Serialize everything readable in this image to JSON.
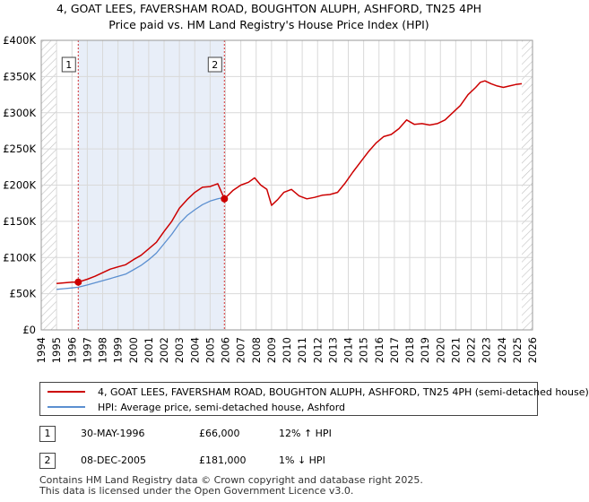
{
  "title": "4, GOAT LEES, FAVERSHAM ROAD, BOUGHTON ALUPH, ASHFORD, TN25 4PH",
  "subtitle": "Price paid vs. HM Land Registry's House Price Index (HPI)",
  "colors": {
    "price_line": "#cc0000",
    "hpi_line": "#5b8fd0",
    "shade": "#e8eef8",
    "grid": "#d9d9d9",
    "hatch": "#c0c0c0"
  },
  "chart_data": {
    "type": "line",
    "title": "Price paid vs. HM Land Registry's House Price Index (HPI)",
    "xlabel": "",
    "ylabel": "",
    "xlim": [
      1994,
      2026
    ],
    "ylim": [
      0,
      400000
    ],
    "x_ticks": [
      "1994",
      "1995",
      "1996",
      "1997",
      "1998",
      "1999",
      "2000",
      "2001",
      "2002",
      "2003",
      "2004",
      "2005",
      "2006",
      "2007",
      "2008",
      "2009",
      "2010",
      "2011",
      "2012",
      "2013",
      "2014",
      "2015",
      "2016",
      "2017",
      "2018",
      "2019",
      "2020",
      "2021",
      "2022",
      "2023",
      "2024",
      "2025",
      "2026"
    ],
    "y_ticks": [
      {
        "value": 0,
        "label": "£0"
      },
      {
        "value": 50000,
        "label": "£50K"
      },
      {
        "value": 100000,
        "label": "£100K"
      },
      {
        "value": 150000,
        "label": "£150K"
      },
      {
        "value": 200000,
        "label": "£200K"
      },
      {
        "value": 250000,
        "label": "£250K"
      },
      {
        "value": 300000,
        "label": "£300K"
      },
      {
        "value": 350000,
        "label": "£350K"
      },
      {
        "value": 400000,
        "label": "£400K"
      }
    ],
    "data_start_year": 1995.0,
    "data_end_year": 2025.3,
    "shaded_period": [
      1996.41,
      2005.93
    ],
    "series": [
      {
        "name": "4, GOAT LEES, FAVERSHAM ROAD, BOUGHTON ALUPH, ASHFORD, TN25 4PH (semi-detached house)",
        "x": [
          1995.0,
          1995.5,
          1996.0,
          1996.41,
          1997.0,
          1997.5,
          1998.0,
          1998.5,
          1999.0,
          1999.5,
          2000.0,
          2000.5,
          2001.0,
          2001.5,
          2002.0,
          2002.5,
          2003.0,
          2003.5,
          2004.0,
          2004.5,
          2005.0,
          2005.5,
          2005.93,
          2006.5,
          2007.0,
          2007.5,
          2007.9,
          2008.3,
          2008.7,
          2009.0,
          2009.4,
          2009.8,
          2010.3,
          2010.8,
          2011.3,
          2011.8,
          2012.3,
          2012.8,
          2013.3,
          2013.8,
          2014.3,
          2014.8,
          2015.3,
          2015.8,
          2016.3,
          2016.8,
          2017.3,
          2017.8,
          2018.3,
          2018.8,
          2019.3,
          2019.8,
          2020.3,
          2020.8,
          2021.3,
          2021.8,
          2022.3,
          2022.6,
          2022.9,
          2023.3,
          2023.7,
          2024.1,
          2024.5,
          2024.9,
          2025.3
        ],
        "values": [
          64000,
          65000,
          66000,
          66000,
          70000,
          74000,
          79000,
          84000,
          87000,
          90000,
          97000,
          103000,
          112000,
          121000,
          136000,
          150000,
          168000,
          180000,
          190000,
          197000,
          198000,
          202000,
          181000,
          193000,
          200000,
          204000,
          210000,
          200000,
          194000,
          172000,
          180000,
          190000,
          194000,
          185000,
          181000,
          183000,
          186000,
          187000,
          190000,
          203000,
          218000,
          232000,
          246000,
          258000,
          267000,
          270000,
          278000,
          290000,
          284000,
          285000,
          283000,
          285000,
          290000,
          300000,
          310000,
          325000,
          335000,
          342000,
          344000,
          340000,
          337000,
          335000,
          337000,
          339000,
          340000
        ]
      },
      {
        "name": "HPI: Average price, semi-detached house, Ashford",
        "x": [
          1995.0,
          1995.5,
          1996.0,
          1996.41,
          1997.0,
          1997.5,
          1998.0,
          1998.5,
          1999.0,
          1999.5,
          2000.0,
          2000.5,
          2001.0,
          2001.5,
          2002.0,
          2002.5,
          2003.0,
          2003.5,
          2004.0,
          2004.5,
          2005.0,
          2005.5,
          2005.93
        ],
        "values": [
          56000,
          57000,
          58000,
          59000,
          62000,
          65000,
          68000,
          71000,
          74000,
          77000,
          83000,
          89000,
          97000,
          106000,
          119000,
          132000,
          147000,
          158000,
          166000,
          173000,
          178000,
          181000,
          183000
        ]
      }
    ],
    "annotations": [
      {
        "label": "1",
        "x": 1996.41,
        "value": 66000
      },
      {
        "label": "2",
        "x": 2005.93,
        "value": 181000
      }
    ]
  },
  "legend": {
    "items": [
      {
        "label": "4, GOAT LEES, FAVERSHAM ROAD, BOUGHTON ALUPH, ASHFORD, TN25 4PH (semi-detached house)"
      },
      {
        "label": "HPI: Average price, semi-detached house, Ashford"
      }
    ]
  },
  "transactions": [
    {
      "marker": "1",
      "date": "30-MAY-1996",
      "price": "£66,000",
      "hpi_change": "12% ↑ HPI"
    },
    {
      "marker": "2",
      "date": "08-DEC-2005",
      "price": "£181,000",
      "hpi_change": "1% ↓ HPI"
    }
  ],
  "footer": {
    "line1": "Contains HM Land Registry data © Crown copyright and database right 2025.",
    "line2": "This data is licensed under the Open Government Licence v3.0."
  }
}
